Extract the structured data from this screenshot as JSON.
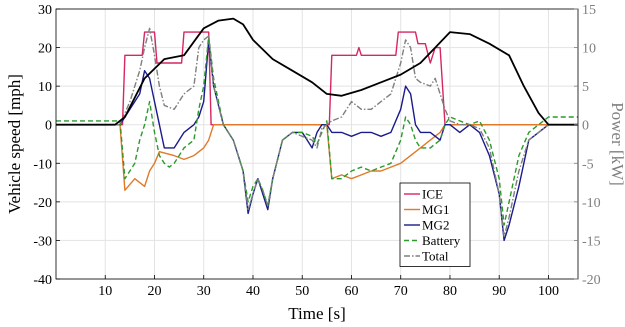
{
  "chart_data": {
    "type": "line",
    "title": "",
    "xlabel": "Time [s]",
    "ylabel_left": "Vehicle speed [mph]",
    "ylabel_right": "Power [kW]",
    "xlim": [
      0,
      106
    ],
    "ylim_left": [
      -40,
      30
    ],
    "ylim_right": [
      -20,
      15
    ],
    "xticks": [
      10,
      20,
      30,
      40,
      50,
      60,
      70,
      80,
      90,
      100
    ],
    "yticks_left": [
      -40,
      -30,
      -20,
      -10,
      0,
      10,
      20,
      30
    ],
    "yticks_right": [
      -20,
      -15,
      -10,
      -5,
      0,
      5,
      10,
      15
    ],
    "xtick_labels": [
      "10",
      "20",
      "30",
      "40",
      "50",
      "60",
      "70",
      "80",
      "90",
      "100"
    ],
    "ytick_labels_left": [
      "-40",
      "-30",
      "-20",
      "-10",
      "0",
      "10",
      "20",
      "30"
    ],
    "ytick_labels_right": [
      "-20",
      "-15",
      "-10",
      "-5",
      "0",
      "5",
      "10",
      "15"
    ],
    "grid": true,
    "legend_position": "bottom-center",
    "colors": {
      "speed": "#000000",
      "ICE": "#d62760",
      "MG1": "#e07a2a",
      "MG2": "#1a1a8c",
      "Battery": "#2a9a2a",
      "Total": "#7f7f7f",
      "right_axis": "#7f7f7f",
      "grid": "#e3e3e3"
    },
    "speed_series": {
      "axis": "left",
      "x": [
        0,
        12,
        14,
        18,
        22,
        26,
        30,
        33,
        36,
        38,
        40,
        44,
        48,
        52,
        55,
        58,
        62,
        66,
        70,
        74,
        77,
        80,
        84,
        88,
        92,
        95,
        98,
        100,
        106
      ],
      "y": [
        0,
        0,
        2,
        12,
        17,
        18,
        25,
        27,
        27.5,
        26,
        22,
        17,
        14,
        11,
        8,
        7.5,
        9,
        11,
        13,
        16,
        20,
        24,
        23.5,
        21,
        18,
        10,
        3,
        0,
        0
      ]
    },
    "series": [
      {
        "name": "ICE",
        "axis": "right",
        "style": "solid",
        "x": [
          0,
          13.5,
          14,
          17.5,
          18,
          20,
          20.5,
          25.5,
          26,
          31,
          31.5,
          55.5,
          56,
          61,
          61.5,
          62,
          69,
          69.5,
          73,
          73.5,
          75,
          76,
          77,
          78,
          79,
          106
        ],
        "y": [
          0,
          0,
          9,
          9,
          12,
          12,
          8,
          8,
          12,
          12,
          0,
          0,
          9,
          9,
          10,
          9,
          9,
          12,
          12,
          10.5,
          10.5,
          8,
          10,
          10,
          0,
          0
        ]
      },
      {
        "name": "MG1",
        "axis": "right",
        "style": "solid",
        "x": [
          0,
          13,
          14,
          16,
          18,
          19,
          20,
          21,
          24,
          26,
          28,
          30,
          31,
          32,
          55,
          56,
          58,
          60,
          62,
          64,
          66,
          68,
          70,
          72,
          74,
          76,
          78,
          79,
          80,
          106
        ],
        "y": [
          0,
          0,
          -8.5,
          -7,
          -8,
          -6,
          -5,
          -3.5,
          -4,
          -4.5,
          -4,
          -3,
          -2,
          0,
          0,
          -7,
          -6.5,
          -7,
          -6.5,
          -6,
          -6,
          -5.5,
          -5,
          -4,
          -3,
          -2,
          -1,
          0,
          0,
          0
        ]
      },
      {
        "name": "MG2",
        "axis": "right",
        "style": "solid",
        "x": [
          0,
          13,
          15,
          17,
          18,
          19,
          20,
          21,
          22,
          24,
          26,
          28,
          29,
          30,
          31,
          32,
          34,
          36,
          38,
          39,
          40,
          41,
          42,
          43,
          44,
          46,
          48,
          50,
          51,
          52,
          53,
          54,
          55,
          56,
          58,
          60,
          62,
          64,
          66,
          68,
          70,
          71,
          72,
          73,
          74,
          76,
          78,
          79,
          80,
          82,
          84,
          86,
          88,
          90,
          91,
          92,
          94,
          96,
          98,
          100,
          106
        ],
        "y": [
          0,
          0,
          2,
          4,
          7,
          6,
          3,
          0,
          -3,
          -3,
          -1,
          0,
          1,
          3,
          11,
          5,
          0,
          -2,
          -6,
          -11.5,
          -9,
          -7,
          -9,
          -11,
          -7,
          -2,
          -1,
          -1,
          -2,
          -3,
          -1,
          0,
          0,
          -1,
          -1,
          -1.5,
          -1,
          -1,
          -1.5,
          -1,
          2,
          5,
          4,
          0,
          -1,
          -1,
          -2,
          0,
          0,
          -1,
          0,
          -1,
          -4,
          -9,
          -15,
          -13,
          -8,
          -2,
          -1,
          0,
          0
        ]
      },
      {
        "name": "Battery",
        "axis": "right",
        "style": "dashed",
        "x": [
          0,
          13,
          14,
          16,
          17,
          18,
          19,
          20,
          21,
          22,
          23,
          24,
          26,
          28,
          29,
          30,
          31,
          32,
          34,
          36,
          38,
          39,
          40,
          41,
          42,
          43,
          44,
          46,
          48,
          50,
          52,
          53,
          54,
          55,
          56,
          58,
          60,
          62,
          64,
          66,
          68,
          70,
          71,
          72,
          73,
          74,
          76,
          78,
          79,
          80,
          82,
          84,
          86,
          88,
          90,
          91,
          92,
          94,
          96,
          98,
          100,
          106
        ],
        "y": [
          0.5,
          0.5,
          -7,
          -5,
          -2,
          0,
          3,
          -1,
          -4,
          -5,
          -5.5,
          -5,
          -3,
          -2,
          2,
          5,
          11.5,
          6,
          0,
          -2,
          -6,
          -10,
          -8,
          -7,
          -8.5,
          -10.5,
          -7,
          -2,
          -1,
          -1,
          -1.5,
          -2.5,
          -1,
          0.5,
          -7,
          -7,
          -6,
          -5.5,
          -6,
          -5.5,
          -5,
          -2,
          1,
          0,
          -2,
          -3,
          -3,
          -2,
          0,
          1,
          0.5,
          0,
          0.5,
          -2,
          -7,
          -13,
          -10,
          -4,
          -1,
          0,
          1,
          1
        ]
      },
      {
        "name": "Total",
        "axis": "right",
        "style": "dashdot",
        "x": [
          0,
          13,
          15,
          17,
          18,
          19,
          20,
          21,
          22,
          24,
          26,
          28,
          29,
          30,
          31,
          32,
          34,
          36,
          38,
          39,
          40,
          41,
          42,
          43,
          44,
          46,
          48,
          50,
          52,
          53,
          54,
          55,
          56,
          58,
          60,
          62,
          64,
          66,
          68,
          70,
          71,
          72,
          73,
          74,
          76,
          77,
          78,
          79,
          80,
          82,
          84,
          86,
          88,
          90,
          91,
          92,
          94,
          96,
          98,
          100,
          106
        ],
        "y": [
          0,
          0,
          3,
          7,
          10,
          12.5,
          9,
          5,
          2.5,
          2,
          4,
          5,
          10,
          11,
          11.5,
          5,
          0,
          -2,
          -6,
          -11,
          -9,
          -7,
          -8.5,
          -10.5,
          -7,
          -2,
          -1,
          -1.5,
          -2,
          -3,
          -0.5,
          0,
          0.5,
          1,
          3,
          2,
          2,
          3,
          4,
          8,
          11,
          10,
          6,
          5.5,
          5,
          6,
          4,
          2,
          0.5,
          0,
          0,
          -0.5,
          -3,
          -9,
          -14.5,
          -12,
          -6,
          -2,
          -1,
          0,
          0
        ]
      }
    ]
  }
}
